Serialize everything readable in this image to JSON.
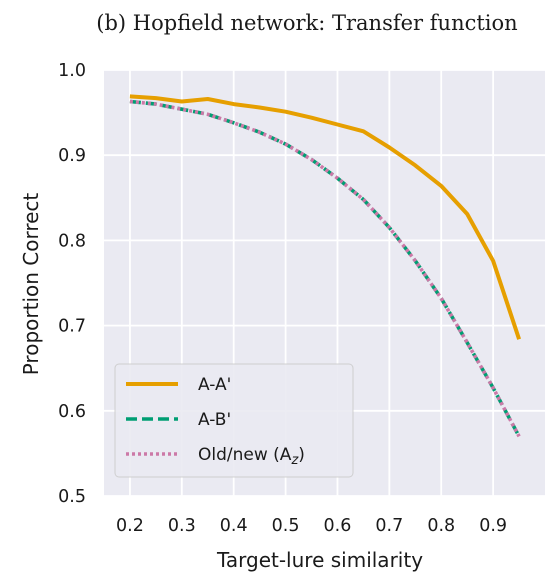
{
  "chart_data": {
    "type": "line",
    "title": "(b) Hopfield network: Transfer function",
    "xlabel": "Target-lure similarity",
    "ylabel": "Proportion Correct",
    "xlim": [
      0.15,
      1.0
    ],
    "ylim": [
      0.5,
      1.0
    ],
    "xticks": [
      0.2,
      0.3,
      0.4,
      0.5,
      0.6,
      0.7,
      0.8,
      0.9
    ],
    "xtick_labels": [
      "0.2",
      "0.3",
      "0.4",
      "0.5",
      "0.6",
      "0.7",
      "0.8",
      "0.9"
    ],
    "yticks": [
      0.5,
      0.6,
      0.7,
      0.8,
      0.9,
      1.0
    ],
    "ytick_labels": [
      "0.5",
      "0.6",
      "0.7",
      "0.8",
      "0.9",
      "1.0"
    ],
    "grid": true,
    "background": "#eaeaf2",
    "legend_position": "lower-left",
    "series": [
      {
        "name": "A-A'",
        "style": "solid",
        "color": "#e69f00",
        "x": [
          0.2,
          0.25,
          0.3,
          0.35,
          0.4,
          0.45,
          0.5,
          0.55,
          0.6,
          0.65,
          0.7,
          0.75,
          0.8,
          0.85,
          0.9,
          0.95
        ],
        "y": [
          0.969,
          0.967,
          0.963,
          0.966,
          0.96,
          0.956,
          0.951,
          0.944,
          0.936,
          0.928,
          0.909,
          0.888,
          0.864,
          0.831,
          0.776,
          0.684
        ]
      },
      {
        "name": "A-B'",
        "style": "dashed",
        "color": "#009e73",
        "x": [
          0.2,
          0.25,
          0.3,
          0.35,
          0.4,
          0.45,
          0.5,
          0.55,
          0.6,
          0.65,
          0.7,
          0.75,
          0.8,
          0.85,
          0.9,
          0.95
        ],
        "y": [
          0.963,
          0.96,
          0.954,
          0.948,
          0.938,
          0.927,
          0.913,
          0.895,
          0.873,
          0.848,
          0.815,
          0.776,
          0.732,
          0.68,
          0.627,
          0.57
        ]
      },
      {
        "name": "Old/new (A",
        "name_sub": "z",
        "name_suffix": ")",
        "style": "dotted",
        "color": "#cc79a7",
        "x": [
          0.2,
          0.25,
          0.3,
          0.35,
          0.4,
          0.45,
          0.5,
          0.55,
          0.6,
          0.65,
          0.7,
          0.75,
          0.8,
          0.85,
          0.9,
          0.95
        ],
        "y": [
          0.963,
          0.96,
          0.954,
          0.948,
          0.938,
          0.927,
          0.913,
          0.895,
          0.873,
          0.848,
          0.815,
          0.776,
          0.732,
          0.68,
          0.627,
          0.57
        ]
      }
    ]
  }
}
